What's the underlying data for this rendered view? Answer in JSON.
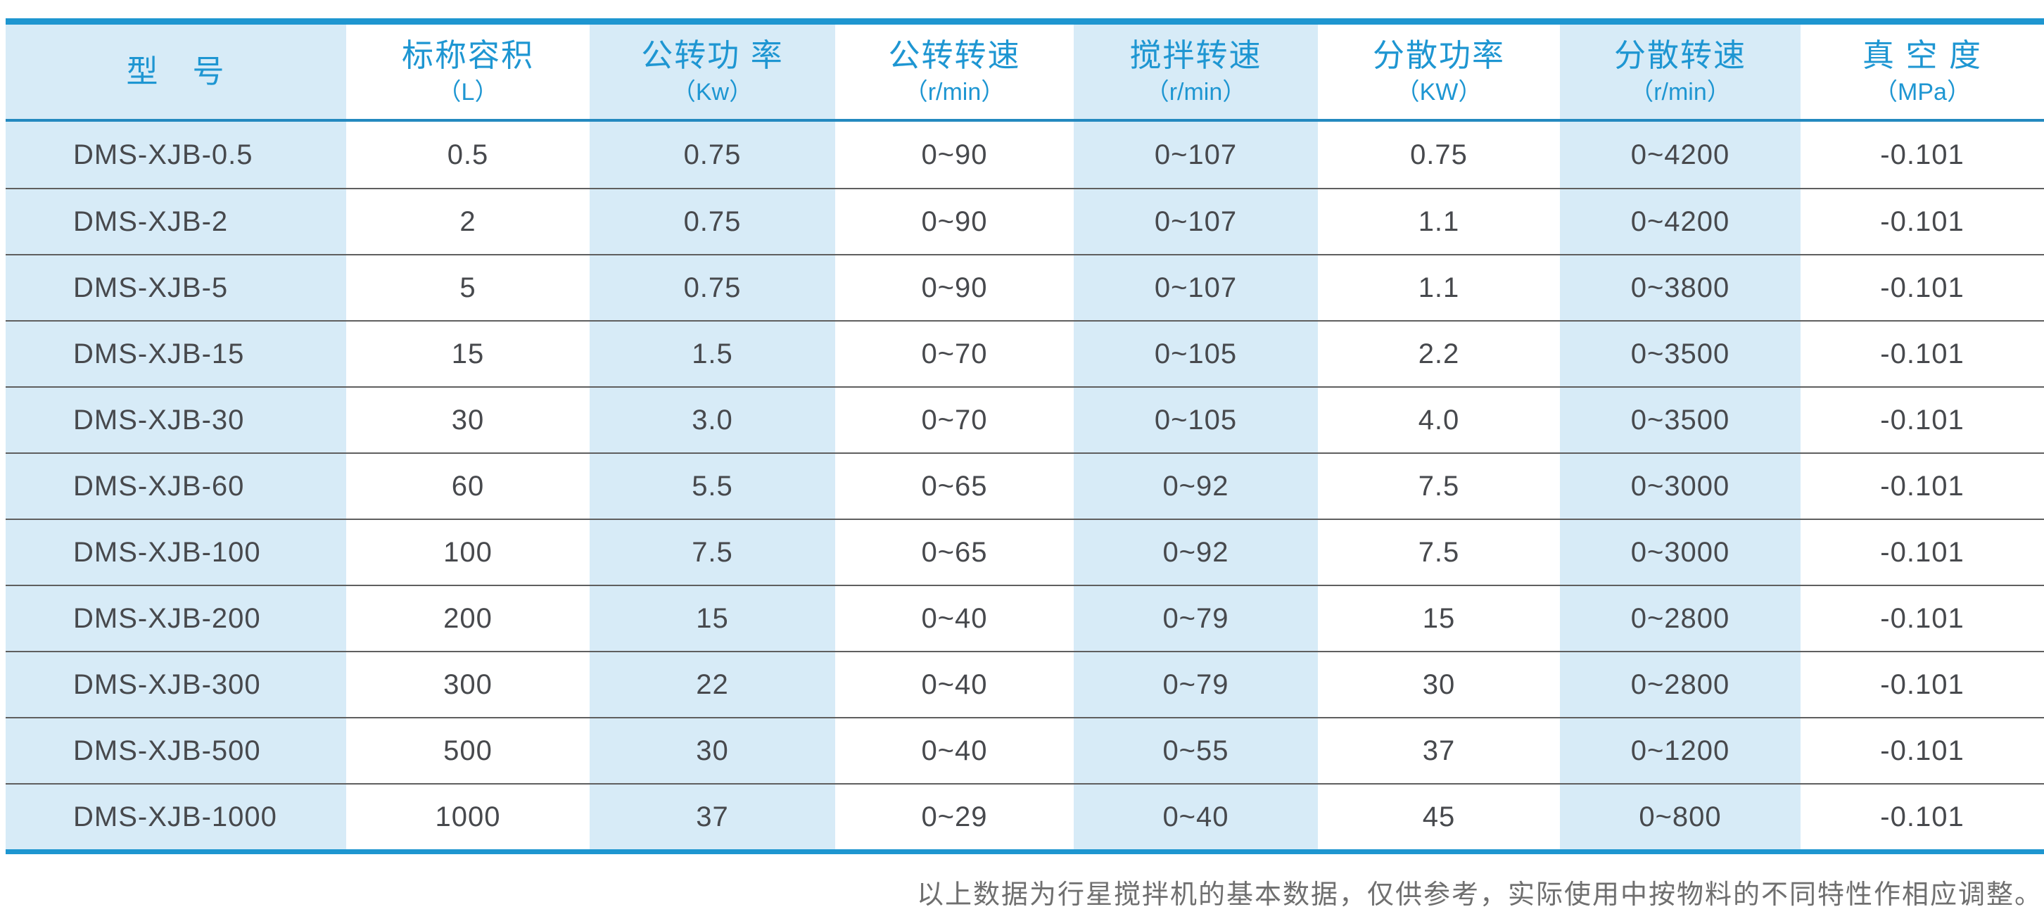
{
  "accent_colors": {
    "border_blue": "#1e96d0",
    "header_text_blue": "#1e96d2",
    "stripe_light_blue": "#d7ebf7",
    "body_text_gray": "#47494d",
    "separator_gray": "#5f5f5f",
    "footnote_gray": "#6f6f6f"
  },
  "table": {
    "columns": [
      {
        "title": "型　号",
        "unit": ""
      },
      {
        "title": "标称容积",
        "unit": "（L）"
      },
      {
        "title": "公转功 率",
        "unit": "（Kw）"
      },
      {
        "title": "公转转速",
        "unit": "（r/min）"
      },
      {
        "title": "搅拌转速",
        "unit": "（r/min）"
      },
      {
        "title": "分散功率",
        "unit": "（KW）"
      },
      {
        "title": "分散转速",
        "unit": "（r/min）"
      },
      {
        "title": "真 空 度",
        "unit": "（MPa）"
      }
    ],
    "rows": [
      [
        "DMS-XJB-0.5",
        "0.5",
        "0.75",
        "0~90",
        "0~107",
        "0.75",
        "0~4200",
        "-0.101"
      ],
      [
        "DMS-XJB-2",
        "2",
        "0.75",
        "0~90",
        "0~107",
        "1.1",
        "0~4200",
        "-0.101"
      ],
      [
        "DMS-XJB-5",
        "5",
        "0.75",
        "0~90",
        "0~107",
        "1.1",
        "0~3800",
        "-0.101"
      ],
      [
        "DMS-XJB-15",
        "15",
        "1.5",
        "0~70",
        "0~105",
        "2.2",
        "0~3500",
        "-0.101"
      ],
      [
        "DMS-XJB-30",
        "30",
        "3.0",
        "0~70",
        "0~105",
        "4.0",
        "0~3500",
        "-0.101"
      ],
      [
        "DMS-XJB-60",
        "60",
        "5.5",
        "0~65",
        "0~92",
        "7.5",
        "0~3000",
        "-0.101"
      ],
      [
        "DMS-XJB-100",
        "100",
        "7.5",
        "0~65",
        "0~92",
        "7.5",
        "0~3000",
        "-0.101"
      ],
      [
        "DMS-XJB-200",
        "200",
        "15",
        "0~40",
        "0~79",
        "15",
        "0~2800",
        "-0.101"
      ],
      [
        "DMS-XJB-300",
        "300",
        "22",
        "0~40",
        "0~79",
        "30",
        "0~2800",
        "-0.101"
      ],
      [
        "DMS-XJB-500",
        "500",
        "30",
        "0~40",
        "0~55",
        "37",
        "0~1200",
        "-0.101"
      ],
      [
        "DMS-XJB-1000",
        "1000",
        "37",
        "0~29",
        "0~40",
        "45",
        "0~800",
        "-0.101"
      ]
    ]
  },
  "footnote": "以上数据为行星搅拌机的基本数据，仅供参考，实际使用中按物料的不同特性作相应调整。"
}
